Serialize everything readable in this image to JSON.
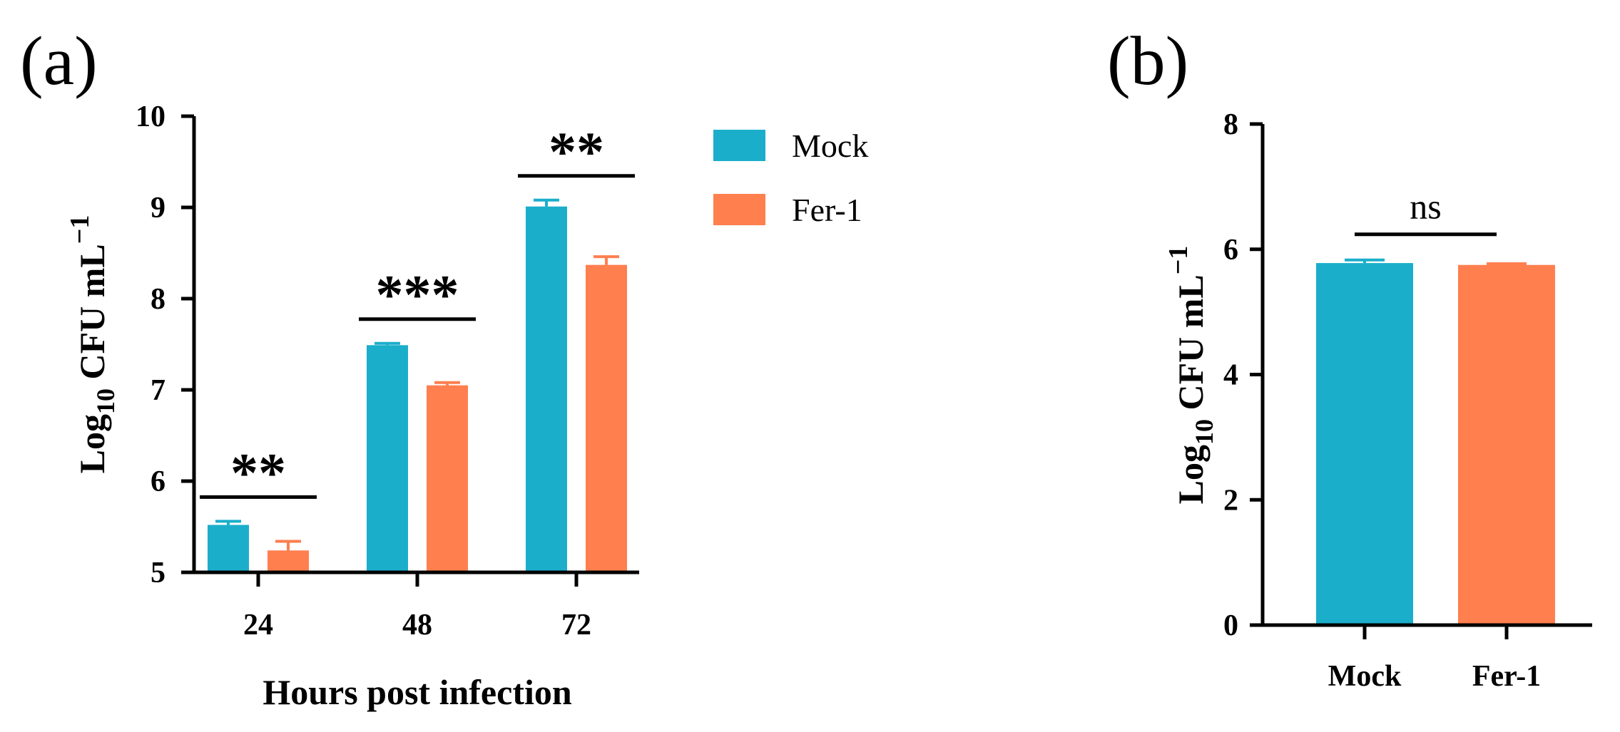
{
  "panel_labels": [
    "(a)",
    "(b)"
  ],
  "colors": {
    "mock": "#1BAECB",
    "fer1": "#FF7F4F",
    "axis": "#000000"
  },
  "chart_data": [
    {
      "id": "a",
      "type": "bar",
      "panel_label": "(a)",
      "categories": [
        "24",
        "48",
        "72"
      ],
      "series": [
        {
          "name": "Mock",
          "color": "#1BAECB",
          "values": [
            5.52,
            7.49,
            9.01
          ],
          "errors": [
            0.04,
            0.02,
            0.07
          ]
        },
        {
          "name": "Fer-1",
          "color": "#FF7F4F",
          "values": [
            5.24,
            7.05,
            8.37
          ],
          "errors": [
            0.1,
            0.03,
            0.09
          ]
        }
      ],
      "xlabel": "Hours post infection",
      "ylabel": {
        "base": "Log",
        "sub": "10",
        "unit": " CFU mL",
        "sup": "−1"
      },
      "ylim": [
        5,
        10
      ],
      "yticks": [
        "5",
        "6",
        "7",
        "8",
        "9",
        "10"
      ],
      "legend": {
        "entries": [
          "Mock",
          "Fer-1"
        ],
        "placement": "top-right-outside"
      },
      "significance": [
        "**",
        "***",
        "**"
      ]
    },
    {
      "id": "b",
      "type": "bar",
      "panel_label": "(b)",
      "categories": [
        "Mock",
        "Fer-1"
      ],
      "values": [
        5.78,
        5.75
      ],
      "errors": [
        0.05,
        0.02
      ],
      "colors": [
        "#1BAECB",
        "#FF7F4F"
      ],
      "ylabel": {
        "base": "Log",
        "sub": "10",
        "unit": " CFU mL",
        "sup": "−1"
      },
      "ylim": [
        0,
        8
      ],
      "yticks": [
        "0",
        "2",
        "4",
        "6",
        "8"
      ],
      "significance": [
        "ns"
      ]
    }
  ]
}
